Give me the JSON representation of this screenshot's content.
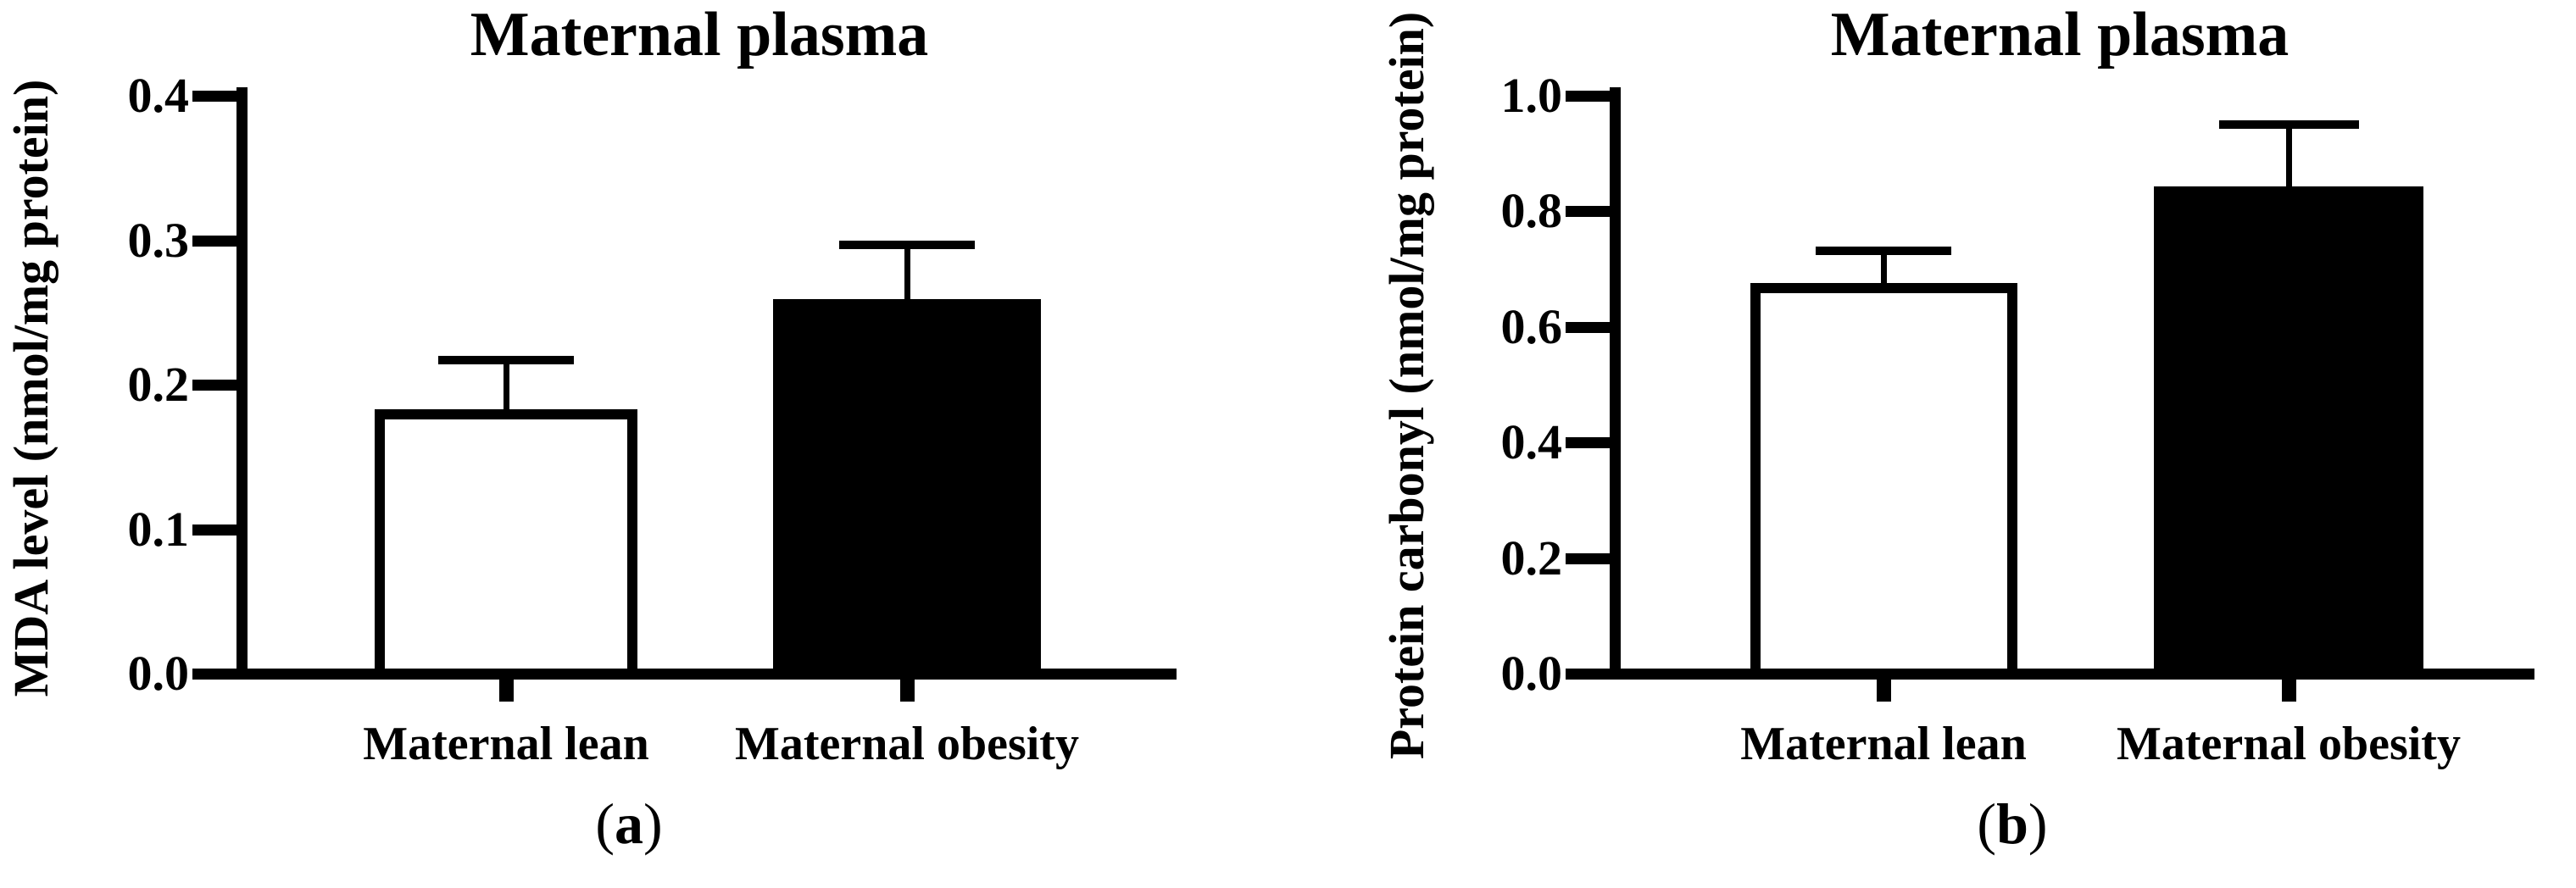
{
  "figure": {
    "background": "#ffffff",
    "ink_color": "#000000",
    "panels": [
      {
        "panel_label": "(a)",
        "panel_letter": "a"
      },
      {
        "panel_label": "(b)",
        "panel_letter": "b"
      }
    ]
  },
  "chart_data": [
    {
      "type": "bar",
      "panel": "a",
      "title": "Maternal plasma",
      "ylabel": "MDA level (nmol/mg protein)",
      "xlabel": "",
      "categories": [
        "Maternal lean",
        "Maternal obesity"
      ],
      "values": [
        0.183,
        0.259
      ],
      "error_tops": [
        0.217,
        0.297
      ],
      "error_direction": "upper-only SEM whiskers",
      "ylim": [
        0,
        0.4
      ],
      "yticks": [
        "0.0",
        "0.1",
        "0.2",
        "0.3",
        "0.4"
      ],
      "bar_colors": [
        "#ffffff",
        "#000000"
      ],
      "bar_outline": "#000000",
      "grid": false,
      "legend": "none"
    },
    {
      "type": "bar",
      "panel": "b",
      "title": "Maternal plasma",
      "ylabel": "Protein carbonyl (nmol/mg protein)",
      "xlabel": "",
      "categories": [
        "Maternal lean",
        "Maternal obesity"
      ],
      "values": [
        0.676,
        0.843
      ],
      "error_tops": [
        0.731,
        0.95
      ],
      "error_direction": "upper-only SEM whiskers",
      "ylim": [
        0,
        1.0
      ],
      "yticks": [
        "0.0",
        "0.2",
        "0.4",
        "0.6",
        "0.8",
        "1.0"
      ],
      "bar_colors": [
        "#ffffff",
        "#000000"
      ],
      "bar_outline": "#000000",
      "grid": false,
      "legend": "none"
    }
  ]
}
